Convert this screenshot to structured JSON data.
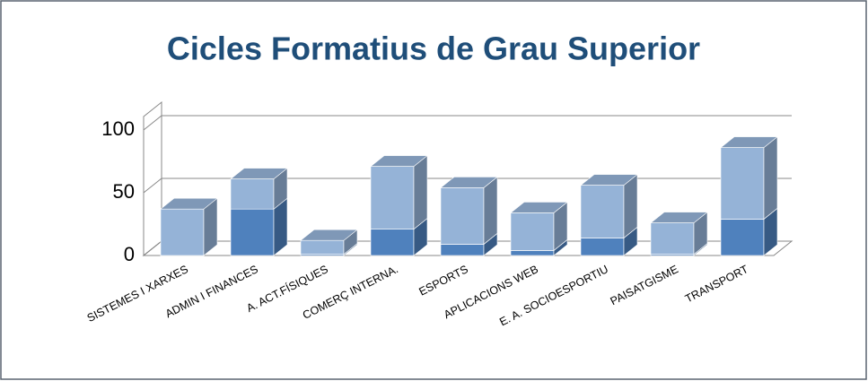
{
  "chart_data": {
    "type": "bar3d-stacked",
    "title": "Cicles Formatius de Grau Superior",
    "categories": [
      "SISTEMES I XARXES",
      "ADMIN I FINANCES",
      "A. ACT.FÍSIQUES",
      "COMERÇ INTERNA.",
      "ESPORTS",
      "APLICACIONS WEB",
      "E. A. SOCIOESPORTIU",
      "PAISATGISME",
      "TRANSPORT"
    ],
    "series": [
      {
        "color": "#4f81bd",
        "values": [
          0,
          37,
          1,
          21,
          9,
          4,
          14,
          1,
          29
        ]
      },
      {
        "color": "#95b3d7",
        "values": [
          37,
          24,
          11,
          50,
          45,
          30,
          42,
          25,
          57
        ]
      }
    ],
    "ylim": [
      0,
      100
    ],
    "yticks": [
      0,
      50,
      100
    ],
    "grid": true
  }
}
